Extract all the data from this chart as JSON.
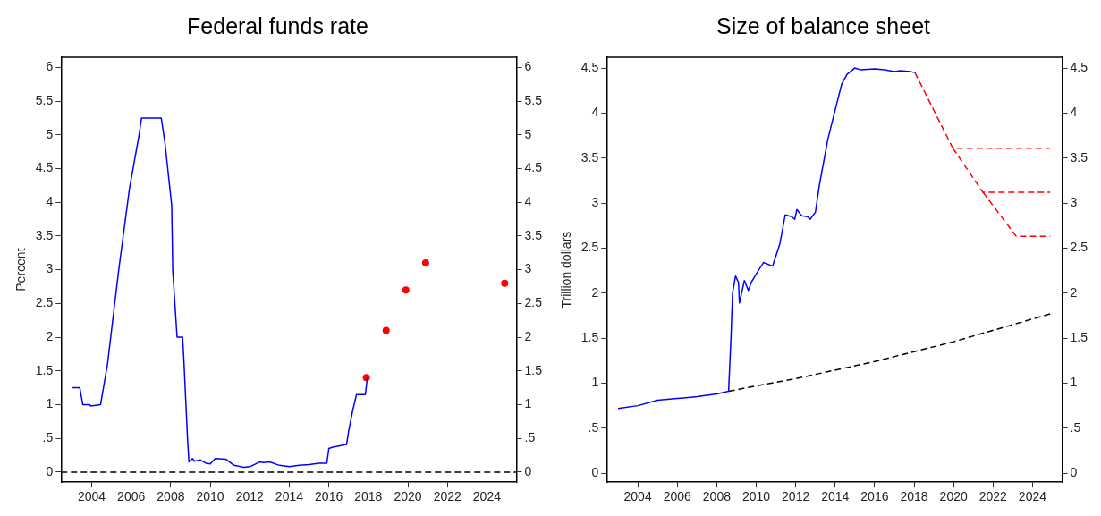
{
  "chart_data": [
    {
      "type": "line",
      "title": "Federal funds rate",
      "ylabel": "Percent",
      "grid": false,
      "legend": false,
      "xlim": [
        2002.45,
        2025.5
      ],
      "xticks": [
        2004,
        2006,
        2008,
        2010,
        2012,
        2014,
        2016,
        2018,
        2020,
        2022,
        2024
      ],
      "ylim": [
        -0.15,
        6.15
      ],
      "yticks": [
        0,
        {
          "value": 0.5,
          "label": ".5"
        },
        1,
        1.5,
        2,
        2.5,
        3,
        3.5,
        4,
        4.5,
        5,
        5.5,
        6
      ],
      "y2lim": [
        -0.15,
        6.15
      ],
      "y2ticks": [
        0,
        {
          "value": 0.5,
          "label": ".5"
        },
        1,
        1.5,
        2,
        2.5,
        3,
        3.5,
        4,
        4.5,
        5,
        5.5,
        6
      ],
      "ref_lines": [
        {
          "axis": "y",
          "value": 0,
          "color": "#000000",
          "line_style": "dashed"
        }
      ],
      "series": [
        {
          "type": "line",
          "color": "#0000ff",
          "line_style": "solid",
          "marker": "none",
          "x": [
            2003.03,
            2003.4,
            2003.55,
            2003.9,
            2003.95,
            2004.45,
            2004.8,
            2005.37,
            2005.91,
            2006.4,
            2006.52,
            2007.52,
            2007.7,
            2008.05,
            2008.1,
            2008.32,
            2008.6,
            2008.65,
            2008.85,
            2008.92,
            2009.1,
            2009.2,
            2009.5,
            2009.8,
            2010.0,
            2010.25,
            2010.8,
            2011.2,
            2011.7,
            2012.0,
            2012.5,
            2012.7,
            2013.0,
            2013.5,
            2014.0,
            2014.5,
            2015.0,
            2015.5,
            2015.9,
            2016.0,
            2016.2,
            2016.9,
            2017.0,
            2017.2,
            2017.4,
            2017.85,
            2017.95
          ],
          "values": [
            1.25,
            1.25,
            1.0,
            1.0,
            0.98,
            1.0,
            1.6,
            3.0,
            4.2,
            5.0,
            5.25,
            5.25,
            4.9,
            3.95,
            3.0,
            2.0,
            2.0,
            1.75,
            0.5,
            0.15,
            0.2,
            0.16,
            0.18,
            0.13,
            0.12,
            0.2,
            0.19,
            0.1,
            0.07,
            0.08,
            0.15,
            0.14,
            0.15,
            0.1,
            0.08,
            0.1,
            0.11,
            0.13,
            0.13,
            0.35,
            0.37,
            0.41,
            0.6,
            0.9,
            1.15,
            1.15,
            1.4
          ]
        },
        {
          "type": "scatter",
          "color": "#ff0000",
          "marker": "circle",
          "x": [
            2017.9,
            2018.9,
            2019.9,
            2020.9,
            2024.9
          ],
          "values": [
            1.4,
            2.1,
            2.7,
            3.1,
            2.8
          ]
        }
      ]
    },
    {
      "type": "line",
      "title": "Size of balance sheet",
      "ylabel": "Trillion dollars",
      "grid": false,
      "legend": false,
      "xlim": [
        2002.42,
        2025.5
      ],
      "xticks": [
        2004,
        2006,
        2008,
        2010,
        2012,
        2014,
        2016,
        2018,
        2020,
        2022,
        2024
      ],
      "ylim": [
        -0.1,
        4.62
      ],
      "yticks": [
        0,
        {
          "value": 0.5,
          "label": ".5"
        },
        1,
        1.5,
        2,
        2.5,
        3,
        3.5,
        4,
        4.5
      ],
      "y2lim": [
        -0.1,
        4.62
      ],
      "y2ticks": [
        0,
        {
          "value": 0.5,
          "label": ".5"
        },
        1,
        1.5,
        2,
        2.5,
        3,
        3.5,
        4,
        4.5
      ],
      "series": [
        {
          "type": "line",
          "color": "#0000ff",
          "line_style": "solid",
          "marker": "none",
          "x": [
            2003.0,
            2004.0,
            2005.0,
            2006.0,
            2007.0,
            2008.0,
            2008.6,
            2008.72,
            2008.8,
            2008.95,
            2009.1,
            2009.15,
            2009.4,
            2009.6,
            2009.75,
            2010.16,
            2010.37,
            2010.83,
            2011.2,
            2011.47,
            2011.8,
            2011.95,
            2012.06,
            2012.3,
            2012.6,
            2012.73,
            2013.0,
            2013.2,
            2013.63,
            2014.04,
            2014.33,
            2014.6,
            2014.99,
            2015.3,
            2016.0,
            2016.5,
            2017.0,
            2017.3,
            2017.8,
            2018.04
          ],
          "values": [
            0.72,
            0.75,
            0.81,
            0.83,
            0.85,
            0.88,
            0.91,
            1.5,
            2.0,
            2.19,
            2.12,
            1.89,
            2.14,
            2.03,
            2.12,
            2.27,
            2.34,
            2.3,
            2.55,
            2.87,
            2.85,
            2.82,
            2.93,
            2.86,
            2.85,
            2.82,
            2.9,
            3.2,
            3.71,
            4.07,
            4.32,
            4.43,
            4.5,
            4.48,
            4.49,
            4.48,
            4.46,
            4.47,
            4.46,
            4.45
          ]
        },
        {
          "type": "line",
          "color": "#000000",
          "line_style": "dashed",
          "marker": "none",
          "x": [
            2008.6,
            2010.0,
            2012.0,
            2016.0,
            2020.0,
            2024.9
          ],
          "values": [
            0.91,
            0.97,
            1.05,
            1.24,
            1.46,
            1.77
          ]
        },
        {
          "type": "line",
          "color": "#ff0000",
          "line_style": "dashed",
          "marker": "none",
          "x": [
            2018.04,
            2019.96,
            2024.9
          ],
          "values": [
            4.45,
            3.61,
            3.61
          ]
        },
        {
          "type": "line",
          "color": "#ff0000",
          "line_style": "dashed",
          "marker": "none",
          "x": [
            2019.96,
            2021.49,
            2024.9
          ],
          "values": [
            3.61,
            3.12,
            3.12
          ]
        },
        {
          "type": "line",
          "color": "#ff0000",
          "line_style": "dashed",
          "marker": "none",
          "x": [
            2021.49,
            2023.18,
            2024.9
          ],
          "values": [
            3.12,
            2.63,
            2.63
          ]
        }
      ]
    }
  ]
}
